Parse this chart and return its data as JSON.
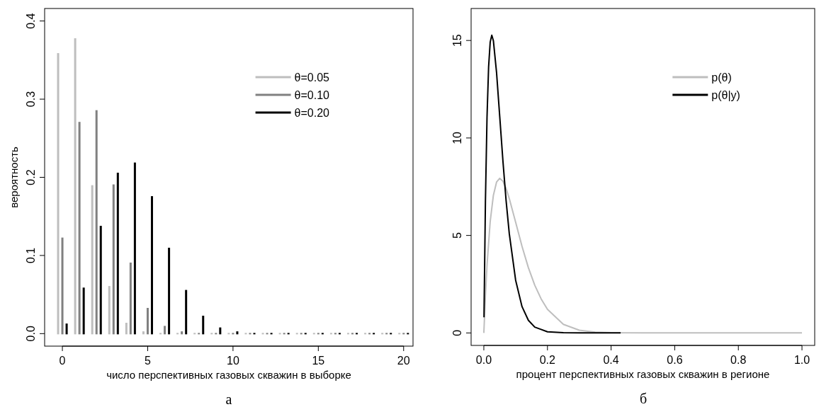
{
  "chart_data": [
    {
      "type": "bar",
      "xlabel": "число перспективных газовых скважин в выборке",
      "ylabel": "вероятность",
      "annotations": [
        "а"
      ],
      "legend": "top right",
      "xlim": [
        -1.04,
        20.55
      ],
      "ylim": [
        -0.016,
        0.416
      ],
      "xticks": [
        0,
        5,
        10,
        15,
        20
      ],
      "yticks": [
        {
          "value": 0,
          "label": "0.0"
        },
        0.1,
        0.2,
        0.3,
        0.4
      ],
      "series": [
        {
          "name": "θ=0.05",
          "color": "#bebebe",
          "x": [
            -0.25,
            0.75,
            1.75,
            2.75,
            3.75,
            4.75,
            5.75,
            6.75,
            7.75,
            8.75,
            9.75,
            10.75,
            11.75,
            12.75,
            13.75,
            14.75,
            15.75,
            16.75,
            17.75,
            18.75,
            19.75
          ],
          "values": [
            0.358,
            0.377,
            0.189,
            0.06,
            0.013,
            0.002,
            0,
            0,
            0,
            0,
            0,
            0,
            0,
            0,
            0,
            0,
            0,
            0,
            0,
            0,
            0
          ]
        },
        {
          "name": "θ=0.10",
          "color": "#808080",
          "x": [
            0,
            1,
            2,
            3,
            4,
            5,
            6,
            7,
            8,
            9,
            10,
            11,
            12,
            13,
            14,
            15,
            16,
            17,
            18,
            19,
            20
          ],
          "values": [
            0.122,
            0.27,
            0.285,
            0.19,
            0.09,
            0.032,
            0.009,
            0.002,
            0,
            0,
            0,
            0,
            0,
            0,
            0,
            0,
            0,
            0,
            0,
            0,
            0
          ]
        },
        {
          "name": "θ=0.20",
          "color": "#000000",
          "x": [
            0.25,
            1.25,
            2.25,
            3.25,
            4.25,
            5.25,
            6.25,
            7.25,
            8.25,
            9.25,
            10.25,
            11.25,
            12.25,
            13.25,
            14.25,
            15.25,
            16.25,
            17.25,
            18.25,
            19.25,
            20.25
          ],
          "values": [
            0.012,
            0.058,
            0.137,
            0.205,
            0.218,
            0.175,
            0.109,
            0.055,
            0.022,
            0.007,
            0.002,
            0,
            0,
            0,
            0,
            0,
            0,
            0,
            0,
            0,
            0
          ]
        }
      ]
    },
    {
      "type": "line",
      "xlabel": "процент перспективных газовых скважин в регионе",
      "annotations": [
        "б"
      ],
      "legend": "top right",
      "xlim": [
        -0.04,
        1.04
      ],
      "ylim": [
        -0.64,
        16.64
      ],
      "xticks": [
        {
          "value": 0,
          "label": "0.0"
        },
        0.2,
        0.4,
        0.6,
        0.8,
        {
          "value": 1,
          "label": "1.0"
        }
      ],
      "yticks": [
        0,
        5,
        10,
        15
      ],
      "series": [
        {
          "name": "p(θ)",
          "color": "#bebebe",
          "x": [
            0,
            0.005,
            0.01,
            0.02,
            0.03,
            0.04,
            0.05,
            0.06,
            0.07,
            0.08,
            0.1,
            0.12,
            0.14,
            0.16,
            0.18,
            0.2,
            0.25,
            0.3,
            0.35,
            0.4,
            0.5,
            1
          ],
          "values": [
            0,
            1.91,
            3.47,
            5.72,
            7.06,
            7.74,
            7.93,
            7.78,
            7.41,
            6.89,
            5.68,
            4.44,
            3.35,
            2.45,
            1.75,
            1.21,
            0.44,
            0.14,
            0.04,
            0.01,
            0,
            0
          ]
        },
        {
          "name": "p(θ|y)",
          "color": "#000000",
          "x": [
            0.0005,
            0.005,
            0.01,
            0.015,
            0.02,
            0.025,
            0.03,
            0.04,
            0.05,
            0.06,
            0.07,
            0.08,
            0.1,
            0.12,
            0.14,
            0.16,
            0.2,
            0.25,
            0.3,
            0.43
          ],
          "values": [
            0.8,
            6.75,
            11.08,
            13.65,
            14.92,
            15.27,
            14.99,
            13.35,
            11.09,
            8.82,
            6.78,
            5.09,
            2.7,
            1.35,
            0.65,
            0.3,
            0.06,
            0.01,
            0,
            0
          ]
        }
      ]
    }
  ]
}
